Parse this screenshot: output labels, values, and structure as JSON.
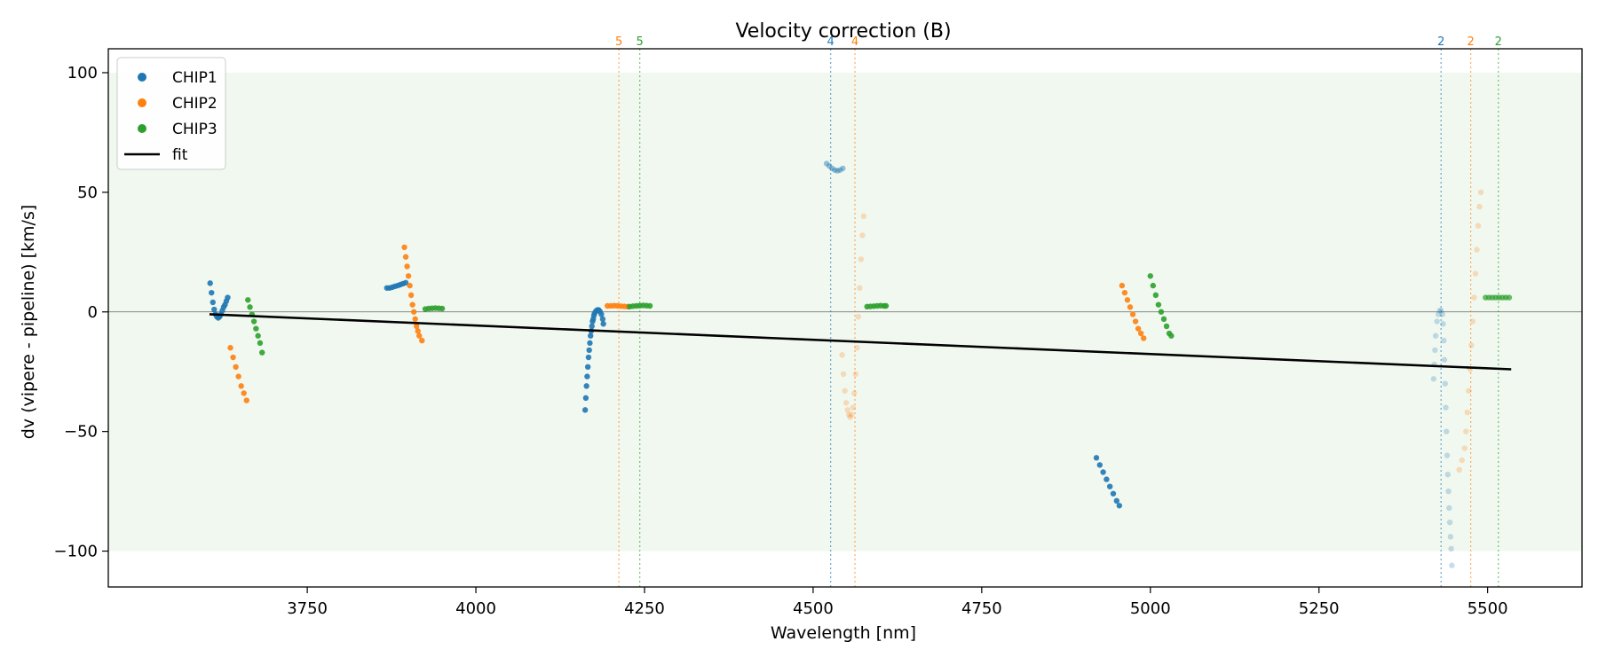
{
  "chart_data": {
    "type": "scatter",
    "title": "Velocity correction (B)",
    "xlabel": "Wavelength [nm]",
    "ylabel": "dv (vipere - pipeline) [km/s]",
    "xlim": [
      3455,
      5640
    ],
    "ylim": [
      -115,
      110
    ],
    "xticks": [
      3750,
      4000,
      4250,
      4500,
      4750,
      5000,
      5250,
      5500
    ],
    "yticks": [
      -100,
      -50,
      0,
      50,
      100
    ],
    "tick_labels_y": [
      "−100",
      "−50",
      "0",
      "50",
      "100"
    ],
    "band": {
      "y0": -100,
      "y1": 100,
      "color": "#2ca02c"
    },
    "zero_line": 0,
    "legend_position": "upper-left",
    "colors": {
      "CHIP1": "#1f77b4",
      "CHIP2": "#ff7f0e",
      "CHIP3": "#2ca02c",
      "fit": "#000000"
    },
    "legend": [
      "CHIP1",
      "CHIP2",
      "CHIP3",
      "fit"
    ],
    "fit": {
      "x": [
        3605,
        5535
      ],
      "y": [
        -1,
        -24
      ]
    },
    "order_markers": [
      {
        "x": 4212,
        "label": "5",
        "series": "CHIP2"
      },
      {
        "x": 4243,
        "label": "5",
        "series": "CHIP3"
      },
      {
        "x": 4526,
        "label": "4",
        "series": "CHIP1"
      },
      {
        "x": 4562,
        "label": "4",
        "series": "CHIP2"
      },
      {
        "x": 5431,
        "label": "2",
        "series": "CHIP1"
      },
      {
        "x": 5475,
        "label": "2",
        "series": "CHIP2"
      },
      {
        "x": 5516,
        "label": "2",
        "series": "CHIP3"
      }
    ],
    "series": [
      {
        "name": "CHIP1",
        "alpha": 0.9,
        "points": [
          [
            3606,
            12
          ],
          [
            3608,
            8
          ],
          [
            3610,
            4
          ],
          [
            3612,
            1
          ],
          [
            3614,
            -1
          ],
          [
            3616,
            -2
          ],
          [
            3618,
            -2.5
          ],
          [
            3620,
            -2
          ],
          [
            3622,
            -1
          ],
          [
            3624,
            0.5
          ],
          [
            3626,
            2
          ],
          [
            3628,
            3
          ],
          [
            3630,
            4.5
          ],
          [
            3632,
            6
          ]
        ]
      },
      {
        "name": "CHIP1",
        "alpha": 0.9,
        "points": [
          [
            3868,
            10
          ],
          [
            3872,
            10
          ],
          [
            3876,
            10.3
          ],
          [
            3880,
            10.7
          ],
          [
            3884,
            11
          ],
          [
            3888,
            11.4
          ],
          [
            3892,
            11.8
          ],
          [
            3896,
            12.2
          ]
        ]
      },
      {
        "name": "CHIP1",
        "alpha": 0.9,
        "points": [
          [
            4162,
            -41
          ],
          [
            4163,
            -36
          ],
          [
            4164,
            -31
          ],
          [
            4165,
            -27
          ],
          [
            4166,
            -23
          ],
          [
            4167,
            -19
          ],
          [
            4168,
            -16
          ],
          [
            4169,
            -13
          ],
          [
            4170,
            -10
          ],
          [
            4171,
            -8
          ],
          [
            4172,
            -6
          ],
          [
            4173,
            -4
          ],
          [
            4174,
            -3
          ],
          [
            4175,
            -1.5
          ],
          [
            4176,
            -0.5
          ],
          [
            4178,
            0.3
          ],
          [
            4180,
            0.8
          ],
          [
            4182,
            0.8
          ],
          [
            4184,
            0.2
          ],
          [
            4186,
            -1
          ],
          [
            4188,
            -3
          ],
          [
            4189,
            -5
          ]
        ]
      },
      {
        "name": "CHIP1",
        "alpha": 0.45,
        "points": [
          [
            4520,
            62
          ],
          [
            4524,
            61
          ],
          [
            4528,
            60
          ],
          [
            4532,
            59.3
          ],
          [
            4536,
            59
          ],
          [
            4540,
            59.3
          ],
          [
            4544,
            60
          ]
        ]
      },
      {
        "name": "CHIP1",
        "alpha": 0.9,
        "points": [
          [
            4920,
            -61
          ],
          [
            4925,
            -64
          ],
          [
            4930,
            -67
          ],
          [
            4935,
            -70
          ],
          [
            4940,
            -73
          ],
          [
            4945,
            -76
          ],
          [
            4950,
            -79
          ],
          [
            4954,
            -81
          ]
        ]
      },
      {
        "name": "CHIP1",
        "alpha": 0.25,
        "points": [
          [
            5420,
            -28
          ],
          [
            5421,
            -22
          ],
          [
            5422,
            -16
          ],
          [
            5423,
            -10
          ],
          [
            5425,
            -4
          ],
          [
            5427,
            -1
          ],
          [
            5429,
            0.5
          ],
          [
            5431,
            0.5
          ],
          [
            5433,
            -1
          ],
          [
            5434,
            -5
          ],
          [
            5435,
            -12
          ],
          [
            5436,
            -20
          ],
          [
            5437,
            -30
          ],
          [
            5438,
            -40
          ],
          [
            5439,
            -50
          ],
          [
            5440,
            -60
          ],
          [
            5441,
            -68
          ],
          [
            5442,
            -75
          ],
          [
            5443,
            -82
          ],
          [
            5444,
            -88
          ],
          [
            5445,
            -94
          ],
          [
            5446,
            -99
          ],
          [
            5447,
            -106
          ]
        ]
      },
      {
        "name": "CHIP2",
        "alpha": 0.9,
        "points": [
          [
            3636,
            -15
          ],
          [
            3640,
            -19
          ],
          [
            3644,
            -23
          ],
          [
            3648,
            -27
          ],
          [
            3652,
            -31
          ],
          [
            3656,
            -34
          ],
          [
            3660,
            -37
          ]
        ]
      },
      {
        "name": "CHIP2",
        "alpha": 0.9,
        "points": [
          [
            3894,
            27
          ],
          [
            3896,
            23
          ],
          [
            3898,
            19
          ],
          [
            3900,
            15
          ],
          [
            3902,
            11
          ],
          [
            3904,
            7
          ],
          [
            3906,
            3
          ],
          [
            3908,
            0
          ],
          [
            3910,
            -3
          ],
          [
            3912,
            -6
          ],
          [
            3914,
            -8
          ],
          [
            3916,
            -10
          ],
          [
            3920,
            -12
          ]
        ]
      },
      {
        "name": "CHIP2",
        "alpha": 0.9,
        "points": [
          [
            4195,
            2.5
          ],
          [
            4200,
            2.5
          ],
          [
            4205,
            2.6
          ],
          [
            4210,
            2.5
          ],
          [
            4215,
            2.4
          ],
          [
            4220,
            2.3
          ],
          [
            4225,
            2.2
          ]
        ]
      },
      {
        "name": "CHIP2",
        "alpha": 0.25,
        "points": [
          [
            4543,
            -18
          ],
          [
            4545,
            -26
          ],
          [
            4547,
            -33
          ],
          [
            4549,
            -38
          ],
          [
            4551,
            -41
          ],
          [
            4553,
            -43
          ],
          [
            4555,
            -44
          ],
          [
            4557,
            -43
          ],
          [
            4559,
            -40
          ],
          [
            4561,
            -34
          ],
          [
            4563,
            -26
          ],
          [
            4565,
            -15
          ],
          [
            4567,
            -2
          ],
          [
            4569,
            10
          ],
          [
            4571,
            22
          ],
          [
            4573,
            32
          ],
          [
            4575,
            40
          ]
        ]
      },
      {
        "name": "CHIP2",
        "alpha": 0.9,
        "points": [
          [
            4958,
            11
          ],
          [
            4962,
            8
          ],
          [
            4966,
            5
          ],
          [
            4970,
            2
          ],
          [
            4974,
            -1
          ],
          [
            4978,
            -4
          ],
          [
            4982,
            -7
          ],
          [
            4986,
            -9
          ],
          [
            4990,
            -11
          ]
        ]
      },
      {
        "name": "CHIP2",
        "alpha": 0.25,
        "points": [
          [
            5458,
            -66
          ],
          [
            5462,
            -62
          ],
          [
            5466,
            -57
          ],
          [
            5468,
            -50
          ],
          [
            5470,
            -42
          ],
          [
            5472,
            -33
          ],
          [
            5474,
            -24
          ],
          [
            5476,
            -14
          ],
          [
            5478,
            -4
          ],
          [
            5480,
            6
          ],
          [
            5482,
            16
          ],
          [
            5484,
            26
          ],
          [
            5486,
            36
          ],
          [
            5488,
            44
          ],
          [
            5490,
            50
          ]
        ]
      },
      {
        "name": "CHIP3",
        "alpha": 0.9,
        "points": [
          [
            3662,
            5
          ],
          [
            3665,
            2
          ],
          [
            3668,
            -1
          ],
          [
            3671,
            -4
          ],
          [
            3674,
            -7
          ],
          [
            3677,
            -10
          ],
          [
            3680,
            -13
          ],
          [
            3683,
            -17
          ]
        ]
      },
      {
        "name": "CHIP3",
        "alpha": 0.9,
        "points": [
          [
            3925,
            1.2
          ],
          [
            3930,
            1.4
          ],
          [
            3935,
            1.5
          ],
          [
            3940,
            1.6
          ],
          [
            3945,
            1.5
          ],
          [
            3950,
            1.4
          ]
        ]
      },
      {
        "name": "CHIP3",
        "alpha": 0.9,
        "points": [
          [
            4228,
            2.2
          ],
          [
            4233,
            2.4
          ],
          [
            4238,
            2.5
          ],
          [
            4243,
            2.6
          ],
          [
            4248,
            2.7
          ],
          [
            4253,
            2.6
          ],
          [
            4258,
            2.5
          ]
        ]
      },
      {
        "name": "CHIP3",
        "alpha": 0.9,
        "points": [
          [
            4580,
            2.2
          ],
          [
            4585,
            2.3
          ],
          [
            4590,
            2.4
          ],
          [
            4595,
            2.5
          ],
          [
            4600,
            2.6
          ],
          [
            4605,
            2.5
          ],
          [
            4608,
            2.5
          ]
        ]
      },
      {
        "name": "CHIP3",
        "alpha": 0.9,
        "points": [
          [
            5000,
            15
          ],
          [
            5004,
            11
          ],
          [
            5008,
            7
          ],
          [
            5012,
            3
          ],
          [
            5016,
            0
          ],
          [
            5020,
            -3
          ],
          [
            5024,
            -6
          ],
          [
            5028,
            -9
          ],
          [
            5031,
            -10
          ]
        ]
      },
      {
        "name": "CHIP3",
        "alpha": 0.7,
        "points": [
          [
            5497,
            6
          ],
          [
            5502,
            6
          ],
          [
            5507,
            6
          ],
          [
            5512,
            6
          ],
          [
            5517,
            6
          ],
          [
            5522,
            6
          ],
          [
            5527,
            6
          ],
          [
            5532,
            6
          ]
        ]
      }
    ]
  }
}
